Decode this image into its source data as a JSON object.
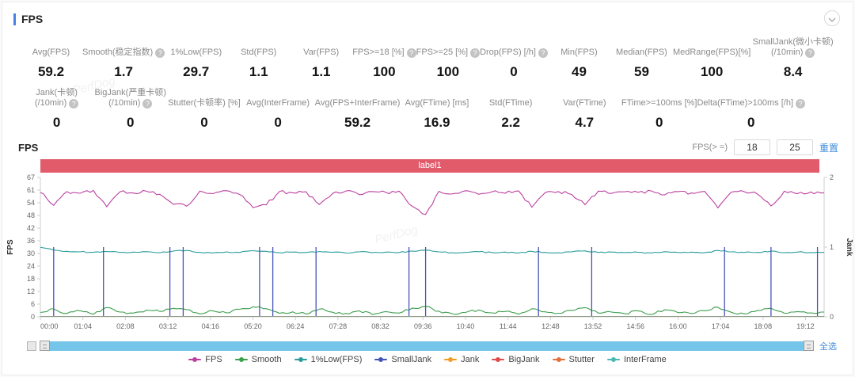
{
  "header": {
    "title": "FPS"
  },
  "watermark": "PerfDog",
  "metrics_row1": [
    {
      "lines": [
        "Avg(FPS)"
      ],
      "help": false,
      "value": "59.2"
    },
    {
      "lines": [
        "Smooth(稳定指数)"
      ],
      "help": true,
      "value": "1.7"
    },
    {
      "lines": [
        "1%Low(FPS)"
      ],
      "help": false,
      "value": "29.7"
    },
    {
      "lines": [
        "Std(FPS)"
      ],
      "help": false,
      "value": "1.1"
    },
    {
      "lines": [
        "Var(FPS)"
      ],
      "help": false,
      "value": "1.1"
    },
    {
      "lines": [
        "FPS>=18 [%]"
      ],
      "help": true,
      "value": "100"
    },
    {
      "lines": [
        "FPS>=25 [%]"
      ],
      "help": true,
      "value": "100"
    },
    {
      "lines": [
        "Drop(FPS) [/h]"
      ],
      "help": true,
      "value": "0"
    },
    {
      "lines": [
        "Min(FPS)"
      ],
      "help": false,
      "value": "49"
    },
    {
      "lines": [
        "Median(FPS)"
      ],
      "help": false,
      "value": "59"
    },
    {
      "lines": [
        "MedRange(FPS)[%]"
      ],
      "help": false,
      "value": "100"
    },
    {
      "lines": [
        "SmallJank(微小卡顿)",
        "(/10min)"
      ],
      "help": true,
      "value": "8.4"
    }
  ],
  "metrics_row2": [
    {
      "lines": [
        "Jank(卡顿)",
        "(/10min)"
      ],
      "help": true,
      "value": "0"
    },
    {
      "lines": [
        "BigJank(严重卡顿)",
        "(/10min)"
      ],
      "help": true,
      "value": "0"
    },
    {
      "lines": [
        "Stutter(卡顿率) [%]"
      ],
      "help": false,
      "value": "0"
    },
    {
      "lines": [
        "Avg(InterFrame)"
      ],
      "help": false,
      "value": "0"
    },
    {
      "lines": [
        "Avg(FPS+InterFrame)"
      ],
      "help": false,
      "value": "59.2"
    },
    {
      "lines": [
        "Avg(FTime) [ms]"
      ],
      "help": false,
      "value": "16.9"
    },
    {
      "lines": [
        "Std(FTime)"
      ],
      "help": false,
      "value": "2.2"
    },
    {
      "lines": [
        "Var(FTime)"
      ],
      "help": false,
      "value": "4.7"
    },
    {
      "lines": [
        "FTime>=100ms [%]"
      ],
      "help": false,
      "value": "0"
    },
    {
      "lines": [
        "Delta(FTime)>100ms [/h]"
      ],
      "help": true,
      "value": "0"
    }
  ],
  "chart_controls": {
    "section_title": "FPS",
    "threshold_label": "FPS(> =)",
    "threshold1": "18",
    "threshold2": "25",
    "reset_label": "重置",
    "select_all_label": "全选",
    "banner_label": "label1"
  },
  "chart_data": {
    "type": "line",
    "title": "FPS over time",
    "banner": "label1",
    "x_ticks": [
      "00:00",
      "01:04",
      "02:08",
      "03:12",
      "04:16",
      "05:20",
      "06:24",
      "07:28",
      "08:32",
      "09:36",
      "10:40",
      "11:44",
      "12:48",
      "13:52",
      "14:56",
      "16:00",
      "17:04",
      "18:08",
      "19:12"
    ],
    "x_tick_interval_seconds": 64,
    "x_max_seconds": 1180,
    "sample_interval_seconds": 20,
    "left_axis": {
      "label": "FPS",
      "ticks": [
        0,
        6,
        12,
        18,
        24,
        30,
        36,
        42,
        48,
        54,
        61,
        67
      ],
      "max": 67
    },
    "right_axis": {
      "label": "Jank",
      "ticks": [
        0,
        1,
        2
      ],
      "max": 2
    },
    "series": [
      {
        "name": "FPS",
        "color": "#bb409f",
        "axis": "left",
        "kind": "line",
        "values": [
          59.8,
          53.6,
          60.2,
          59.4,
          60.7,
          52.9,
          60.1,
          59.5,
          60.3,
          58.9,
          54.1,
          53.2,
          60.4,
          59.2,
          60.6,
          58.8,
          52.5,
          53.8,
          60.2,
          59.6,
          60.1,
          54.0,
          59.3,
          60.5,
          58.7,
          60.2,
          59.8,
          60.4,
          53.1,
          49.2,
          60.3,
          59.1,
          60.6,
          58.9,
          60.1,
          59.4,
          60.5,
          52.7,
          59.7,
          60.2,
          58.8,
          53.9,
          60.4,
          59.3,
          60.1,
          59.8,
          60.5,
          58.6,
          60.2,
          59.5,
          60.3,
          52.4,
          59.9,
          60.1,
          58.9,
          53.3,
          60.4,
          59.2,
          60.0,
          59.6
        ]
      },
      {
        "name": "Smooth",
        "color": "#3d9e4d",
        "axis": "left",
        "kind": "line",
        "values": [
          2.1,
          3.8,
          1.6,
          2.9,
          1.2,
          4.5,
          2.3,
          1.8,
          3.2,
          2.6,
          4.1,
          3.5,
          1.4,
          2.8,
          1.9,
          3.6,
          4.8,
          3.9,
          1.7,
          2.4,
          1.3,
          3.7,
          2.2,
          1.6,
          2.9,
          1.1,
          2.5,
          1.8,
          4.2,
          5.0,
          2.7,
          1.5,
          2.1,
          3.3,
          1.9,
          2.6,
          1.2,
          3.9,
          2.4,
          1.7,
          3.1,
          4.4,
          1.8,
          2.3,
          1.5,
          2.8,
          1.1,
          3.4,
          2.0,
          1.6,
          2.9,
          4.6,
          2.2,
          1.4,
          3.0,
          4.1,
          1.7,
          2.5,
          1.9,
          2.3
        ]
      },
      {
        "name": "1%Low(FPS)",
        "color": "#2a9d9c",
        "axis": "left",
        "kind": "line",
        "values": [
          33.4,
          32.1,
          31.5,
          31.2,
          31.0,
          31.4,
          30.9,
          31.1,
          31.3,
          30.8,
          31.6,
          31.9,
          31.0,
          30.7,
          31.2,
          30.9,
          31.8,
          31.5,
          30.8,
          31.1,
          30.9,
          31.4,
          31.0,
          30.7,
          31.2,
          30.8,
          31.1,
          30.9,
          31.6,
          32.0,
          31.2,
          30.8,
          31.0,
          31.3,
          30.9,
          31.1,
          30.7,
          31.5,
          31.0,
          30.8,
          31.2,
          31.7,
          30.9,
          31.1,
          30.8,
          31.0,
          30.7,
          31.3,
          30.9,
          31.1,
          30.8,
          31.9,
          31.2,
          30.9,
          31.0,
          31.6,
          30.8,
          31.1,
          30.9,
          31.0
        ]
      },
      {
        "name": "SmallJank",
        "color": "#4554b8",
        "axis": "right",
        "kind": "spike",
        "spikes": [
          {
            "t": 20,
            "v": 1
          },
          {
            "t": 95,
            "v": 1
          },
          {
            "t": 195,
            "v": 1
          },
          {
            "t": 215,
            "v": 1
          },
          {
            "t": 330,
            "v": 1
          },
          {
            "t": 350,
            "v": 1
          },
          {
            "t": 415,
            "v": 1
          },
          {
            "t": 555,
            "v": 1
          },
          {
            "t": 580,
            "v": 1
          },
          {
            "t": 750,
            "v": 1
          },
          {
            "t": 830,
            "v": 1
          },
          {
            "t": 1030,
            "v": 1
          },
          {
            "t": 1100,
            "v": 1
          },
          {
            "t": 1170,
            "v": 1
          }
        ]
      },
      {
        "name": "Jank",
        "color": "#f59a23",
        "axis": "right",
        "kind": "flat",
        "value": 0
      },
      {
        "name": "BigJank",
        "color": "#e04b4b",
        "axis": "right",
        "kind": "flat",
        "value": 0
      },
      {
        "name": "Stutter",
        "color": "#e2703a",
        "axis": "right",
        "kind": "flat",
        "value": 0
      },
      {
        "name": "InterFrame",
        "color": "#4ab8b4",
        "axis": "left",
        "kind": "flat",
        "value": 0
      }
    ]
  }
}
